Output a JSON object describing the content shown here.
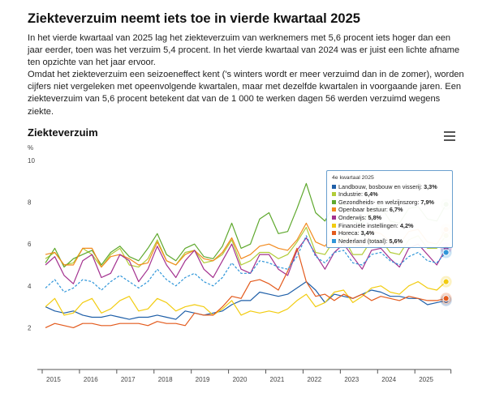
{
  "article": {
    "title": "Ziekteverzuim neemt iets toe in vierde kwartaal 2025",
    "paragraph1": "In het vierde kwartaal van 2025 lag het ziekteverzuim van werknemers met 5,6 procent iets hoger dan een jaar eerder, toen was het verzuim 5,4 procent. In het vierde kwartaal van 2024 was er juist een lichte afname ten opzichte van het jaar ervoor.",
    "paragraph2": "Omdat het ziekteverzuim een seizoeneffect kent ('s winters wordt er meer verzuimd dan in de zomer), worden cijfers niet vergeleken met opeenvolgende kwartalen, maar met dezelfde kwartalen in voorgaande jaren. Een ziekteverzuim van 5,6 procent betekent dat van de 1 000 te werken dagen 56 werden verzuimd wegens ziekte."
  },
  "chart": {
    "title": "Ziekteverzuim",
    "menu_icon": "hamburger-menu-icon"
  },
  "tooltip": {
    "header": "4e kwartaal 2025",
    "rows": [
      {
        "label": "Landbouw, bosbouw en visserij:",
        "value": "3,3%"
      },
      {
        "label": "Industrie:",
        "value": "6,4%"
      },
      {
        "label": "Gezondheids- en welzijnszorg:",
        "value": "7,9%"
      },
      {
        "label": "Openbaar bestuur:",
        "value": "6,7%"
      },
      {
        "label": "Onderwijs:",
        "value": "5,8%"
      },
      {
        "label": "Financiële instellingen:",
        "value": "4,2%"
      },
      {
        "label": "Horeca:",
        "value": "3,4%"
      },
      {
        "label": "Nederland (totaal):",
        "value": "5,6%"
      }
    ]
  },
  "chart_data": {
    "type": "line",
    "title": "Ziekteverzuim",
    "ylabel": "%",
    "xlabel": "",
    "ylim": [
      0,
      10
    ],
    "yticks": [
      0,
      2,
      4,
      6,
      8,
      10
    ],
    "xticks": [
      "2015",
      "2016",
      "2017",
      "2018",
      "2019",
      "2020",
      "2021",
      "2022",
      "2023",
      "2024",
      "2025"
    ],
    "x": [
      "2015K1",
      "2015K2",
      "2015K3",
      "2015K4",
      "2016K1",
      "2016K2",
      "2016K3",
      "2016K4",
      "2017K1",
      "2017K2",
      "2017K3",
      "2017K4",
      "2018K1",
      "2018K2",
      "2018K3",
      "2018K4",
      "2019K1",
      "2019K2",
      "2019K3",
      "2019K4",
      "2020K1",
      "2020K2",
      "2020K3",
      "2020K4",
      "2021K1",
      "2021K2",
      "2021K3",
      "2021K4",
      "2022K1",
      "2022K2",
      "2022K3",
      "2022K4",
      "2023K1",
      "2023K2",
      "2023K3",
      "2023K4",
      "2024K1",
      "2024K2",
      "2024K3",
      "2024K4",
      "2025K1",
      "2025K2",
      "2025K3",
      "2025K4"
    ],
    "grid": false,
    "series": [
      {
        "name": "Landbouw, bosbouw en visserij",
        "color": "#1f5fa8",
        "dashed": false,
        "values": [
          3.0,
          2.8,
          2.7,
          2.8,
          2.6,
          2.5,
          2.5,
          2.6,
          2.5,
          2.4,
          2.5,
          2.5,
          2.6,
          2.5,
          2.4,
          2.8,
          2.7,
          2.6,
          2.7,
          2.8,
          3.1,
          3.3,
          3.3,
          3.7,
          3.6,
          3.5,
          3.6,
          3.9,
          4.2,
          3.8,
          3.2,
          3.6,
          3.5,
          3.4,
          3.6,
          3.8,
          3.7,
          3.5,
          3.5,
          3.4,
          3.4,
          3.1,
          3.2,
          3.3
        ]
      },
      {
        "name": "Industrie",
        "color": "#b2cc38",
        "dashed": false,
        "values": [
          5.3,
          5.6,
          5.0,
          5.1,
          5.8,
          5.5,
          4.9,
          5.5,
          5.8,
          5.0,
          4.9,
          5.3,
          6.2,
          5.2,
          5.0,
          5.6,
          5.7,
          5.1,
          5.2,
          5.5,
          6.2,
          5.0,
          5.2,
          5.6,
          5.6,
          5.3,
          5.5,
          6.1,
          6.8,
          5.6,
          5.5,
          6.2,
          6.3,
          5.5,
          5.5,
          6.2,
          6.2,
          5.6,
          5.5,
          6.2,
          6.4,
          5.8,
          5.8,
          6.4
        ]
      },
      {
        "name": "Gezondheids- en welzijnszorg",
        "color": "#5ea82d",
        "dashed": false,
        "values": [
          5.1,
          5.8,
          4.9,
          5.3,
          5.5,
          5.7,
          5.0,
          5.6,
          5.9,
          5.4,
          5.2,
          5.8,
          6.5,
          5.5,
          5.2,
          5.8,
          6.0,
          5.4,
          5.3,
          5.9,
          7.0,
          5.8,
          6.0,
          7.2,
          7.5,
          6.5,
          6.6,
          7.7,
          8.9,
          7.5,
          7.1,
          7.9,
          7.9,
          7.1,
          7.0,
          7.7,
          7.8,
          7.1,
          7.0,
          7.7,
          7.8,
          7.2,
          7.1,
          7.9
        ]
      },
      {
        "name": "Openbaar bestuur",
        "color": "#f28a1e",
        "dashed": false,
        "values": [
          5.5,
          5.6,
          5.0,
          5.0,
          5.8,
          5.8,
          4.9,
          5.4,
          5.5,
          5.3,
          5.0,
          5.1,
          6.1,
          5.2,
          5.0,
          5.5,
          5.7,
          5.3,
          5.2,
          5.6,
          6.3,
          5.3,
          5.5,
          5.9,
          6.0,
          5.8,
          5.7,
          6.2,
          7.0,
          6.1,
          5.9,
          6.5,
          6.6,
          6.0,
          5.9,
          6.6,
          6.5,
          6.1,
          6.0,
          6.6,
          6.7,
          6.1,
          6.0,
          6.7
        ]
      },
      {
        "name": "Onderwijs",
        "color": "#a3318f",
        "dashed": false,
        "values": [
          5.0,
          5.4,
          4.5,
          4.1,
          5.2,
          5.5,
          4.4,
          4.6,
          5.5,
          5.2,
          4.2,
          4.8,
          5.9,
          5.0,
          4.4,
          5.2,
          5.7,
          4.8,
          4.4,
          5.2,
          6.0,
          4.8,
          4.6,
          5.5,
          5.5,
          4.8,
          4.5,
          5.7,
          6.3,
          5.5,
          4.8,
          5.6,
          6.0,
          5.4,
          4.8,
          5.7,
          5.8,
          5.3,
          4.9,
          5.8,
          6.0,
          5.5,
          5.0,
          5.8
        ]
      },
      {
        "name": "Financiële instellingen",
        "color": "#f2cc10",
        "dashed": false,
        "values": [
          3.0,
          3.4,
          2.6,
          2.7,
          3.2,
          3.4,
          2.7,
          2.9,
          3.3,
          3.5,
          2.8,
          2.9,
          3.4,
          3.2,
          2.8,
          3.0,
          3.1,
          3.0,
          2.6,
          2.9,
          3.3,
          2.6,
          2.8,
          2.7,
          2.8,
          2.7,
          2.9,
          3.3,
          3.6,
          3.0,
          3.2,
          3.7,
          3.8,
          3.2,
          3.5,
          3.9,
          4.0,
          3.7,
          3.6,
          4.0,
          4.2,
          3.9,
          3.8,
          4.2
        ]
      },
      {
        "name": "Horeca",
        "color": "#e35a1c",
        "dashed": false,
        "values": [
          2.0,
          2.2,
          2.1,
          2.0,
          2.2,
          2.2,
          2.1,
          2.1,
          2.2,
          2.2,
          2.2,
          2.1,
          2.3,
          2.2,
          2.2,
          2.1,
          2.7,
          2.6,
          2.6,
          3.0,
          3.5,
          3.4,
          4.2,
          4.3,
          4.1,
          3.8,
          4.7,
          5.8,
          4.2,
          3.5,
          3.6,
          3.3,
          3.6,
          3.4,
          3.6,
          3.3,
          3.5,
          3.4,
          3.3,
          3.5,
          3.4,
          3.3,
          3.3,
          3.4
        ]
      },
      {
        "name": "Nederland (totaal)",
        "color": "#2f96d9",
        "dashed": true,
        "values": [
          3.9,
          4.3,
          3.7,
          3.9,
          4.3,
          4.2,
          3.8,
          4.2,
          4.5,
          4.2,
          3.9,
          4.2,
          4.8,
          4.3,
          4.0,
          4.4,
          4.6,
          4.2,
          4.0,
          4.4,
          5.1,
          4.6,
          4.6,
          5.2,
          5.1,
          4.9,
          4.8,
          5.4,
          6.4,
          5.4,
          5.1,
          5.6,
          5.7,
          5.1,
          5.0,
          5.5,
          5.6,
          5.2,
          5.0,
          5.4,
          5.6,
          5.2,
          5.1,
          5.6
        ]
      }
    ]
  }
}
